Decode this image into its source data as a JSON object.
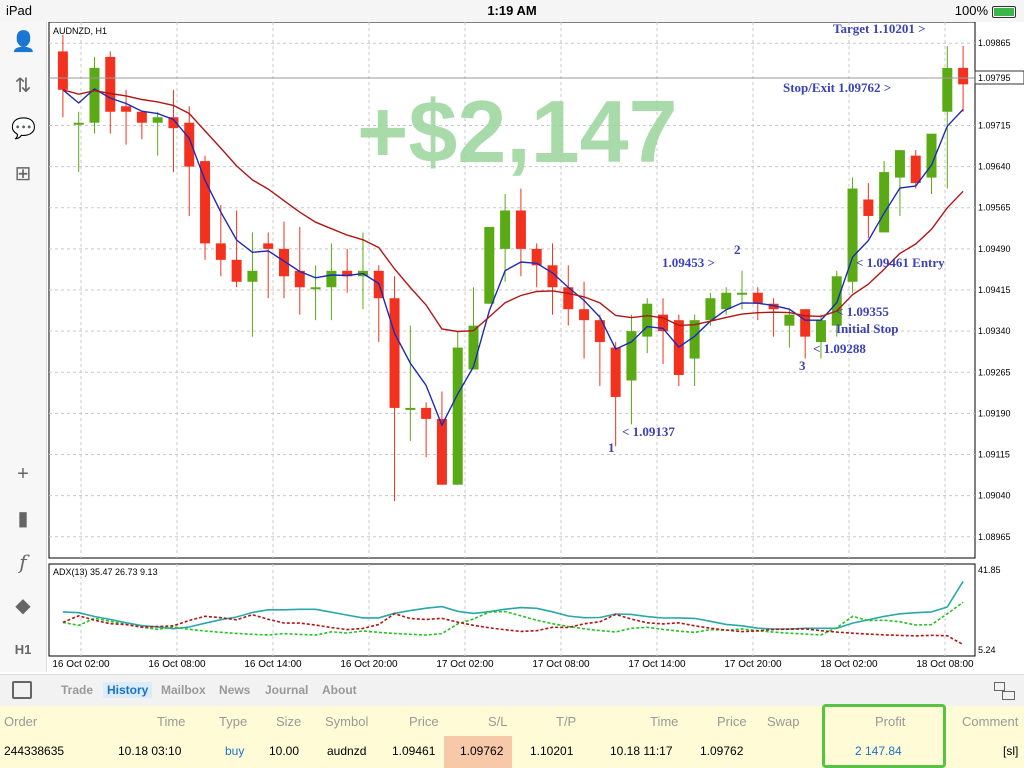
{
  "status_bar": {
    "device": "iPad",
    "time": "1:19 AM",
    "battery": "100%"
  },
  "left_toolbar": [
    {
      "name": "account-icon",
      "glyph": "👤"
    },
    {
      "name": "trade-icon",
      "glyph": "⇅"
    },
    {
      "name": "chat-icon",
      "glyph": "💬"
    },
    {
      "name": "new-order-icon",
      "glyph": "⊞"
    },
    {
      "name": "crosshair-icon",
      "glyph": "+"
    },
    {
      "name": "candles-icon",
      "glyph": "▮"
    },
    {
      "name": "indicators-icon",
      "glyph": "f"
    },
    {
      "name": "objects-icon",
      "glyph": "◆"
    },
    {
      "name": "timeframe-icon",
      "glyph": "H1"
    }
  ],
  "chart": {
    "symbol_label": "AUDNZD, H1",
    "profit_overlay": "+$2,147",
    "current_price_label": "1.09795",
    "price_axis": [
      "1.09865",
      "1.09795",
      "1.09715",
      "1.09640",
      "1.09565",
      "1.09490",
      "1.09415",
      "1.09340",
      "1.09265",
      "1.09190",
      "1.09115",
      "1.09040",
      "1.08965"
    ],
    "annotations": {
      "target": "Target 1.10201 >",
      "stop_exit": "Stop/Exit 1.09762 >",
      "entry": "< 1.09461 Entry",
      "initial_stop_price": "< 1.09355",
      "initial_stop_label": "Initial Stop",
      "low3": "< 1.09288",
      "label3": "3",
      "high2": "1.09453 >",
      "label2": "2",
      "low1": "< 1.09137",
      "label1": "1"
    },
    "adx_label": "ADX(13) 35.47 26.73 9.13",
    "adx_axis": [
      "41.85",
      "5.24"
    ],
    "time_axis": [
      "16 Oct 02:00",
      "16 Oct 08:00",
      "16 Oct 14:00",
      "16 Oct 20:00",
      "17 Oct 02:00",
      "17 Oct 08:00",
      "17 Oct 14:00",
      "17 Oct 20:00",
      "18 Oct 02:00",
      "18 Oct 08:00"
    ],
    "colors": {
      "bull": "#5aaa16",
      "bear": "#f2321e",
      "ma_fast": "#1c2bb8",
      "ma_slow": "#b21616",
      "annotation": "#3b42b8",
      "overlay": "#9ad39b"
    }
  },
  "chart_data": {
    "type": "candlestick",
    "symbol": "AUDNZD",
    "timeframe": "H1",
    "ylim": [
      1.0893,
      1.099
    ],
    "candles": [
      [
        1.0985,
        1.0988,
        1.0973,
        1.0978
      ],
      [
        1.0972,
        1.0974,
        1.0963,
        1.0972
      ],
      [
        1.0972,
        1.0984,
        1.097,
        1.0982
      ],
      [
        1.0984,
        1.0985,
        1.097,
        1.0974
      ],
      [
        1.0975,
        1.0978,
        1.0968,
        1.0974
      ],
      [
        1.0974,
        1.0974,
        1.0969,
        1.0972
      ],
      [
        1.0972,
        1.0974,
        1.0966,
        1.0973
      ],
      [
        1.0973,
        1.0978,
        1.0963,
        1.0971
      ],
      [
        1.0972,
        1.0975,
        1.0955,
        1.0964
      ],
      [
        1.0965,
        1.0966,
        1.0947,
        1.095
      ],
      [
        1.095,
        1.0957,
        1.0944,
        1.0947
      ],
      [
        1.0947,
        1.0956,
        1.0942,
        1.0943
      ],
      [
        1.0943,
        1.0952,
        1.0933,
        1.0945
      ],
      [
        1.095,
        1.0952,
        1.094,
        1.0949
      ],
      [
        1.0949,
        1.0954,
        1.094,
        1.0944
      ],
      [
        1.0945,
        1.0953,
        1.0937,
        1.0942
      ],
      [
        1.0942,
        1.0946,
        1.0936,
        1.0942
      ],
      [
        1.0942,
        1.095,
        1.0936,
        1.0945
      ],
      [
        1.0945,
        1.0949,
        1.0941,
        1.0944
      ],
      [
        1.0944,
        1.0952,
        1.0938,
        1.0945
      ],
      [
        1.0945,
        1.0946,
        1.0932,
        1.094
      ],
      [
        1.094,
        1.0944,
        1.0903,
        1.092
      ],
      [
        1.092,
        1.0935,
        1.0914,
        1.092
      ],
      [
        1.092,
        1.0921,
        1.0911,
        1.0918
      ],
      [
        1.0918,
        1.0923,
        1.0906,
        1.0906
      ],
      [
        1.0906,
        1.0934,
        1.0906,
        1.0931
      ],
      [
        1.0927,
        1.0942,
        1.0927,
        1.0935
      ],
      [
        1.0939,
        1.0953,
        1.0939,
        1.0953
      ],
      [
        1.0949,
        1.0959,
        1.0943,
        1.0956
      ],
      [
        1.0956,
        1.096,
        1.0944,
        1.0949
      ],
      [
        1.0949,
        1.095,
        1.0942,
        1.0946
      ],
      [
        1.0946,
        1.095,
        1.0937,
        1.0942
      ],
      [
        1.0942,
        1.0946,
        1.0935,
        1.0938
      ],
      [
        1.0938,
        1.0943,
        1.0929,
        1.0936
      ],
      [
        1.0936,
        1.0937,
        1.0924,
        1.0932
      ],
      [
        1.0931,
        1.0932,
        1.0913,
        1.0922
      ],
      [
        1.0925,
        1.0937,
        1.0917,
        1.0934
      ],
      [
        1.0933,
        1.094,
        1.093,
        1.0939
      ],
      [
        1.0937,
        1.094,
        1.0928,
        1.0934
      ],
      [
        1.0936,
        1.0937,
        1.0924,
        1.0926
      ],
      [
        1.0929,
        1.0937,
        1.0924,
        1.0936
      ],
      [
        1.0936,
        1.0941,
        1.0935,
        1.094
      ],
      [
        1.0938,
        1.0942,
        1.0937,
        1.0941
      ],
      [
        1.0941,
        1.0945,
        1.0938,
        1.0941
      ],
      [
        1.0941,
        1.0942,
        1.0936,
        1.0939
      ],
      [
        1.0939,
        1.094,
        1.0933,
        1.0938
      ],
      [
        1.0935,
        1.0938,
        1.0931,
        1.0937
      ],
      [
        1.0938,
        1.0938,
        1.0929,
        1.0933
      ],
      [
        1.0932,
        1.0937,
        1.0929,
        1.0936
      ],
      [
        1.0935,
        1.0945,
        1.0933,
        1.0944
      ],
      [
        1.0943,
        1.0962,
        1.0941,
        1.096
      ],
      [
        1.0958,
        1.0961,
        1.0951,
        1.0955
      ],
      [
        1.0952,
        1.0965,
        1.0952,
        1.0963
      ],
      [
        1.0962,
        1.0967,
        1.0955,
        1.0967
      ],
      [
        1.0966,
        1.0967,
        1.096,
        1.0961
      ],
      [
        1.0962,
        1.097,
        1.0959,
        1.097
      ],
      [
        1.0974,
        1.0986,
        1.096,
        1.0982
      ],
      [
        1.0982,
        1.0986,
        1.0974,
        1.0979
      ]
    ],
    "ma_fast_color": "#1c2bb8",
    "ma_slow_color": "#b21616",
    "adx_ylim": [
      5.24,
      41.85
    ],
    "adx_current": {
      "adx": 35.47,
      "plus_di": 26.73,
      "minus_di": 9.13
    }
  },
  "tabs": [
    {
      "label": "Trade",
      "active": false
    },
    {
      "label": "History",
      "active": true
    },
    {
      "label": "Mailbox",
      "active": false
    },
    {
      "label": "News",
      "active": false
    },
    {
      "label": "Journal",
      "active": false
    },
    {
      "label": "About",
      "active": false
    }
  ],
  "table": {
    "headers": [
      "Order",
      "Time",
      "Type",
      "Size",
      "Symbol",
      "Price",
      "S/L",
      "T/P",
      "Time",
      "Price",
      "Swap",
      "Profit",
      "Comment"
    ],
    "row": {
      "order": "244338635",
      "open_time": "10.18 03:10",
      "type": "buy",
      "size": "10.00",
      "symbol": "audnzd",
      "open_price": "1.09461",
      "sl": "1.09762",
      "tp": "1.10201",
      "close_time": "10.18 11:17",
      "close_price": "1.09762",
      "swap": "",
      "profit": "2 147.84",
      "comment": "[sl]"
    }
  }
}
